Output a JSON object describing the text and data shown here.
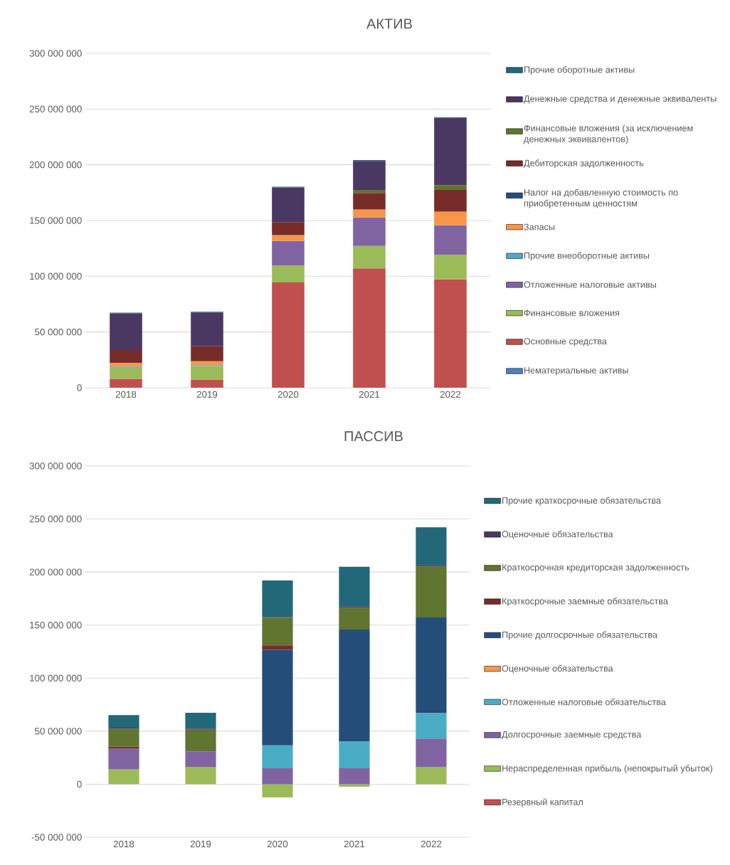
{
  "chart_data": [
    {
      "type": "bar",
      "title": "АКТИВ",
      "stacked": true,
      "categories": [
        "2018",
        "2019",
        "2020",
        "2021",
        "2022"
      ],
      "ylim": [
        0,
        300000000
      ],
      "yticks": [
        {
          "value": 0,
          "label": "0"
        },
        {
          "value": 50000000,
          "label": "50 000 000"
        },
        {
          "value": 100000000,
          "label": "100 000 000"
        },
        {
          "value": 150000000,
          "label": "150 000 000"
        },
        {
          "value": 200000000,
          "label": "200 000 000"
        },
        {
          "value": 250000000,
          "label": "250 000 000"
        },
        {
          "value": 300000000,
          "label": "300 000 000"
        }
      ],
      "grid": "y",
      "legend": "right",
      "series": [
        {
          "name": "Нематериальные активы",
          "color": "#4f81bd",
          "values": [
            0,
            0,
            0,
            0,
            0
          ]
        },
        {
          "name": "Основные средства",
          "color": "#c0504d",
          "values": [
            8000000,
            7200000,
            94500000,
            107000000,
            97300000
          ]
        },
        {
          "name": "Финансовые вложения",
          "color": "#9bbb59",
          "values": [
            10000000,
            12300000,
            15200000,
            20200000,
            21900000
          ]
        },
        {
          "name": "Отложенные налоговые активы",
          "color": "#8064a2",
          "values": [
            0,
            0,
            21900000,
            25500000,
            26500000
          ]
        },
        {
          "name": "Прочие внеоборотные активы",
          "color": "#4bacc6",
          "values": [
            1000000,
            700000,
            0,
            0,
            0
          ]
        },
        {
          "name": "Запасы",
          "color": "#f79646",
          "values": [
            3400000,
            3600000,
            5300000,
            7200000,
            12300000
          ]
        },
        {
          "name": "Налог на добавленную стоимость по приобретенным ценностям",
          "color": "#254d79",
          "values": [
            0,
            0,
            0,
            0,
            0
          ]
        },
        {
          "name": "Дебиторская задолженность",
          "color": "#772c2a",
          "values": [
            11500000,
            13300000,
            11600000,
            14900000,
            19500000
          ]
        },
        {
          "name": "Финансовые вложения (за исключением денежных эквивалентов)",
          "color": "#5f7530",
          "values": [
            0,
            0,
            0,
            2700000,
            4300000
          ]
        },
        {
          "name": "Денежные средства и денежные эквиваленты",
          "color": "#4b3862",
          "values": [
            32800000,
            30400000,
            31100000,
            26000000,
            60200000
          ]
        },
        {
          "name": "Прочие оборотные активы",
          "color": "#226878",
          "values": [
            700000,
            700000,
            700000,
            700000,
            700000
          ]
        }
      ]
    },
    {
      "type": "bar",
      "title": "ПАССИВ",
      "stacked": true,
      "categories": [
        "2018",
        "2019",
        "2020",
        "2021",
        "2022"
      ],
      "ylim": [
        -50000000,
        300000000
      ],
      "yticks": [
        {
          "value": -50000000,
          "label": "-50 000 000"
        },
        {
          "value": 0,
          "label": "0"
        },
        {
          "value": 50000000,
          "label": "50 000 000"
        },
        {
          "value": 100000000,
          "label": "100 000 000"
        },
        {
          "value": 150000000,
          "label": "150 000 000"
        },
        {
          "value": 200000000,
          "label": "200 000 000"
        },
        {
          "value": 250000000,
          "label": "250 000 000"
        },
        {
          "value": 300000000,
          "label": "300 000 000"
        }
      ],
      "grid": "y",
      "legend": "right",
      "series": [
        {
          "name": "Резервный капитал",
          "color": "#c0504d",
          "values": [
            0,
            0,
            0,
            0,
            0
          ]
        },
        {
          "name": "Нераспределенная прибыль (непокрытый убыток)",
          "color": "#9bbb59",
          "values": [
            14100000,
            16100000,
            -12500000,
            -2400000,
            16100000
          ]
        },
        {
          "name": "Долгосрочные заемные средства",
          "color": "#8064a2",
          "values": [
            19400000,
            14900000,
            15100000,
            15100000,
            26900000
          ]
        },
        {
          "name": "Отложенные налоговые обязательства",
          "color": "#4bacc6",
          "values": [
            0,
            0,
            21600000,
            25200000,
            24200000
          ]
        },
        {
          "name": "Оценочные обязательства",
          "color": "#f79646",
          "values": [
            0,
            0,
            0,
            0,
            0
          ]
        },
        {
          "name": "Прочие долгосрочные обязательства",
          "color": "#254d79",
          "values": [
            0,
            0,
            89900000,
            105500000,
            89900000
          ]
        },
        {
          "name": "Краткосрочные заемные обязательства",
          "color": "#772c2a",
          "values": [
            1900000,
            0,
            4300000,
            0,
            0
          ]
        },
        {
          "name": "Краткосрочная кредиторская задолженность",
          "color": "#5f7530",
          "values": [
            16800000,
            20400000,
            26100000,
            20600000,
            48200000
          ]
        },
        {
          "name": "Оценочные обязательства",
          "color": "#4b3862",
          "values": [
            1000000,
            1000000,
            700000,
            1400000,
            1400000
          ]
        },
        {
          "name": "Прочие краткосрочные обязательства",
          "color": "#226878",
          "values": [
            12000000,
            14900000,
            34300000,
            37200000,
            35500000
          ]
        }
      ]
    }
  ]
}
